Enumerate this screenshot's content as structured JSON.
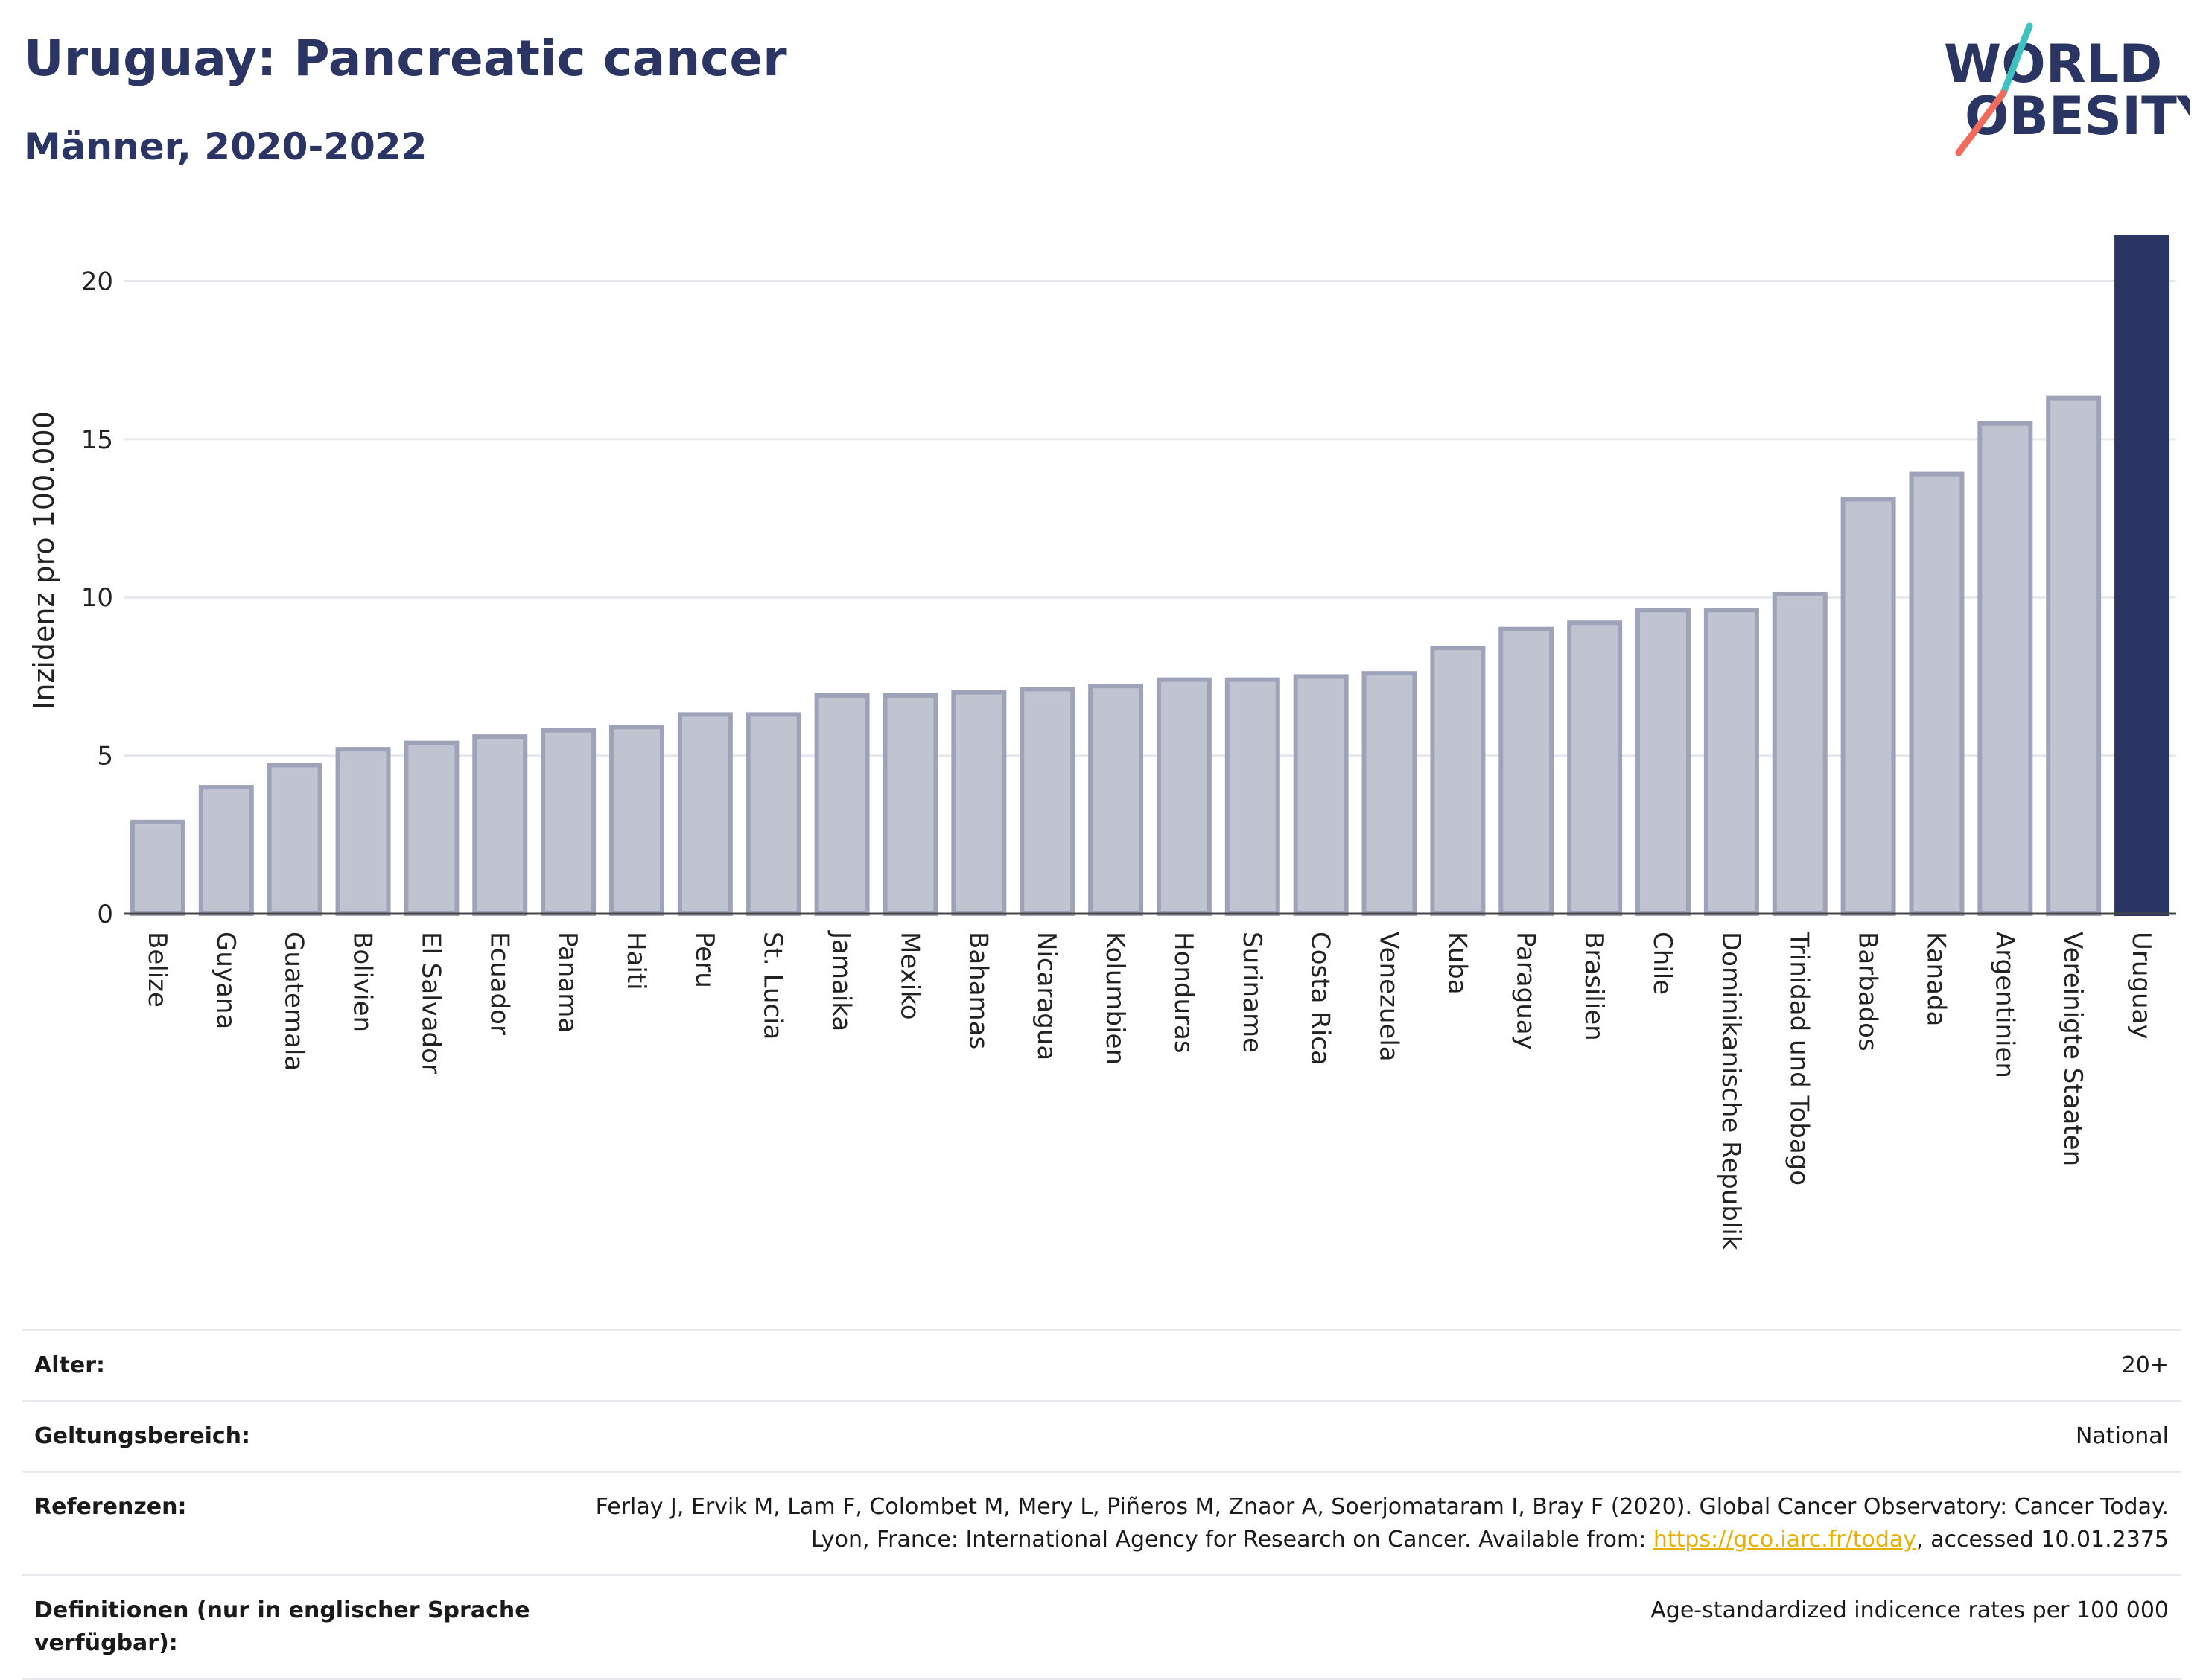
{
  "header": {
    "title": "Uruguay: Pancreatic cancer",
    "subtitle": "Männer, 2020-2022"
  },
  "logo": {
    "line1": "WORLD",
    "line2": "OBESITY"
  },
  "colors": {
    "highlight": "#2b3563",
    "bar_fill": "#c0c3d0",
    "bar_stroke": "#9ea3ba",
    "grid": "#e6e8ee",
    "link": "#e8b100"
  },
  "chart_data": {
    "type": "bar",
    "ylabel": "Inzidenz pro 100.000",
    "xlabel": "",
    "ylim": [
      0,
      21.4
    ],
    "yticks": [
      0,
      5,
      10,
      15,
      20
    ],
    "grid": true,
    "highlight": "Uruguay",
    "categories": [
      "Belize",
      "Guyana",
      "Guatemala",
      "Bolivien",
      "El Salvador",
      "Ecuador",
      "Panama",
      "Haiti",
      "Peru",
      "St. Lucia",
      "Jamaika",
      "Mexiko",
      "Bahamas",
      "Nicaragua",
      "Kolumbien",
      "Honduras",
      "Suriname",
      "Costa Rica",
      "Venezuela",
      "Kuba",
      "Paraguay",
      "Brasilien",
      "Chile",
      "Dominikanische Republik",
      "Trinidad und Tobago",
      "Barbados",
      "Kanada",
      "Argentinien",
      "Vereinigte Staaten",
      "Uruguay"
    ],
    "values": [
      2.9,
      4.0,
      4.7,
      5.2,
      5.4,
      5.6,
      5.8,
      5.9,
      6.3,
      6.3,
      6.9,
      6.9,
      7.0,
      7.1,
      7.2,
      7.4,
      7.4,
      7.5,
      7.6,
      8.4,
      9.0,
      9.2,
      9.6,
      9.6,
      10.1,
      13.1,
      13.9,
      15.5,
      16.3,
      21.4
    ]
  },
  "info": {
    "age_label": "Alter:",
    "age_value": "20+",
    "scope_label": "Geltungsbereich:",
    "scope_value": "National",
    "ref_label": "Referenzen:",
    "ref_text_1": "Ferlay J, Ervik M, Lam F, Colombet M, Mery L, Piñeros M, Znaor A, Soerjomataram I, Bray F (2020). Global Cancer Observatory: Cancer Today. Lyon, France: International Agency for Research on Cancer. Available from: ",
    "ref_link": "https://gco.iarc.fr/today",
    "ref_text_2": ", accessed 10.01.2375",
    "def_label": "Definitionen (nur in englischer Sprache verfügbar):",
    "def_value": "Age-standardized indicence rates per 100 000"
  }
}
